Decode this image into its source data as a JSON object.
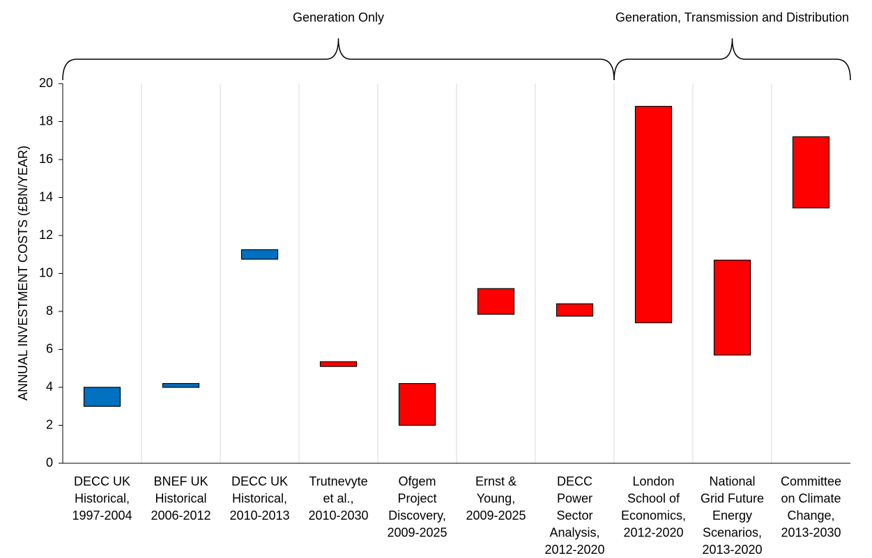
{
  "chart_data": {
    "type": "floating_bar",
    "ylabel": "ANNUAL INVESTMENT COSTS (£BN/YEAR)",
    "categories": [
      [
        "DECC UK",
        "Historical,",
        "1997-2004"
      ],
      [
        "BNEF UK",
        "Historical",
        "2006-2012"
      ],
      [
        "DECC UK",
        "Historical,",
        "2010-2013"
      ],
      [
        "Trutnevyte",
        "et al.,",
        "2010-2030"
      ],
      [
        "Ofgem",
        "Project",
        "Discovery,",
        "2009-2025"
      ],
      [
        "Ernst &",
        "Young,",
        "2009-2025"
      ],
      [
        "DECC",
        "Power",
        "Sector",
        "Analysis,",
        "2012-2020"
      ],
      [
        "London",
        "School of",
        "Economics,",
        "2012-2020"
      ],
      [
        "National",
        "Grid Future",
        "Energy",
        "Scenarios,",
        "2013-2020"
      ],
      [
        "Committee",
        "on Climate",
        "Change,",
        "2013-2030"
      ]
    ],
    "low": [
      3.0,
      4.0,
      10.75,
      5.1,
      2.0,
      7.85,
      7.75,
      7.4,
      5.7,
      13.45
    ],
    "high": [
      4.0,
      4.2,
      11.25,
      5.35,
      4.2,
      9.2,
      8.4,
      18.8,
      10.7,
      17.2
    ],
    "colors": [
      "#0070c0",
      "#0070c0",
      "#0070c0",
      "#ff0000",
      "#ff0000",
      "#ff0000",
      "#ff0000",
      "#ff0000",
      "#ff0000",
      "#ff0000"
    ],
    "groups": [
      {
        "label": "Generation Only",
        "categories": 7
      },
      {
        "label": "Generation, Transmission and Distribution",
        "categories": 3
      }
    ],
    "ylim": [
      0,
      20
    ],
    "yticks": [
      0,
      2,
      4,
      6,
      8,
      10,
      12,
      14,
      16,
      18,
      20
    ],
    "grid": true
  }
}
